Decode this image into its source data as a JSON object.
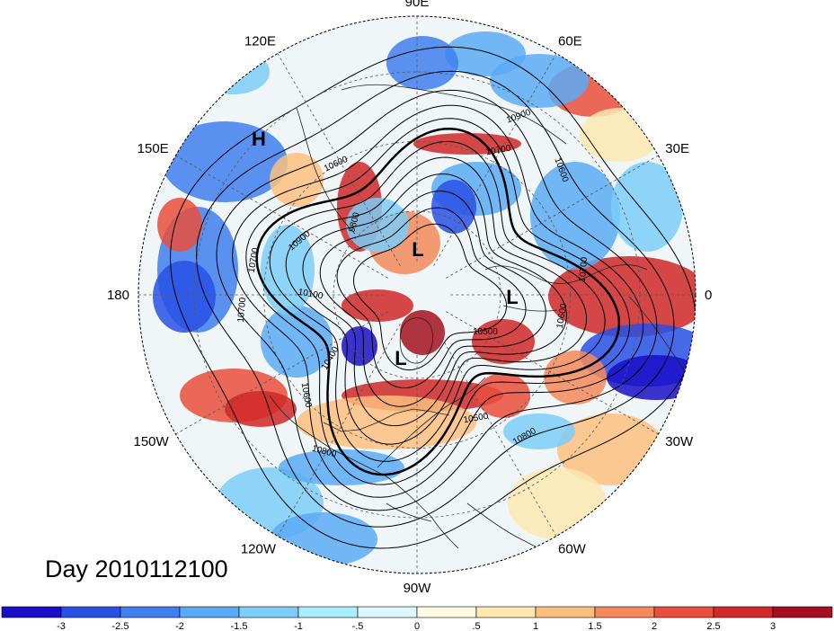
{
  "title": "Day 2010112100",
  "longitude_labels": [
    "90E",
    "60E",
    "30E",
    "0",
    "30W",
    "60W",
    "90W",
    "120W",
    "150W",
    "180",
    "150E",
    "120E"
  ],
  "pressure_centers": [
    {
      "type": "H"
    },
    {
      "type": "L"
    },
    {
      "type": "L"
    },
    {
      "type": "L"
    }
  ],
  "contour_labels": [
    "10900",
    "10600",
    "10600",
    "10700",
    "10700",
    "10600",
    "10500",
    "10500",
    "10800",
    "10800",
    "10600",
    "10400",
    "10100",
    "10900",
    "9800",
    "10700",
    "10700"
  ],
  "colorbar": {
    "ticks": [
      "-3",
      "-2.5",
      "-2",
      "-1.5",
      "-1",
      "-.5",
      "0",
      ".5",
      "1",
      "1.5",
      "2",
      "2.5",
      "3"
    ],
    "colors": [
      "#1a0fc8",
      "#2850e6",
      "#3f7ff0",
      "#5aaaf5",
      "#7dcdf8",
      "#aaeefb",
      "#dcf8fd",
      "#fffbe1",
      "#fde8b0",
      "#fbbf7e",
      "#f48a5c",
      "#ea4e3c",
      "#d02828",
      "#a51020"
    ]
  }
}
